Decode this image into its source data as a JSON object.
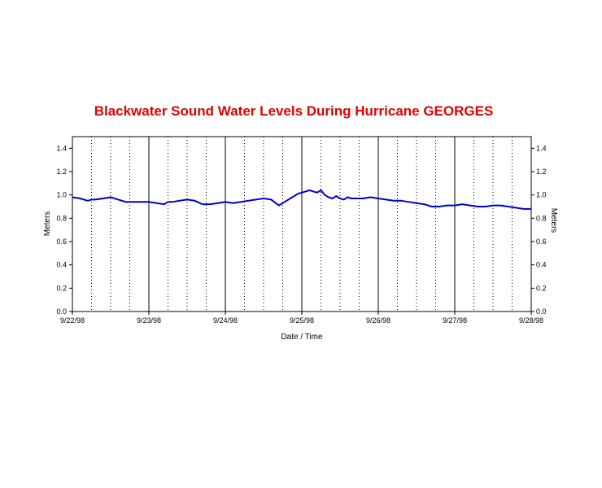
{
  "colors": {
    "title": "#e00000",
    "series": "#0000cc",
    "axis": "#000000",
    "grid": "#000000"
  },
  "chart_data": {
    "type": "line",
    "title": "Blackwater Sound Water Levels During Hurricane GEORGES",
    "xlabel": "Date / Time",
    "ylabel": "Meters",
    "ylabel_right": "Meters",
    "xlim": [
      "9/22/98 00:00",
      "9/28/98 00:00"
    ],
    "ylim": [
      0.0,
      1.5
    ],
    "x_tick_labels": [
      "9/22/98",
      "9/23/98",
      "9/24/98",
      "9/25/98",
      "9/26/98",
      "9/27/98",
      "9/28/98"
    ],
    "y_tick_labels": [
      "0.0",
      "0.2",
      "0.4",
      "0.6",
      "0.8",
      "1.0",
      "1.2",
      "1.4"
    ],
    "y_ticks": [
      0.0,
      0.2,
      0.4,
      0.6,
      0.8,
      1.0,
      1.2,
      1.4
    ],
    "grid": {
      "major_vertical": "solid, daily",
      "minor_vertical": "dotted, every 6 hours",
      "horizontal": "none"
    },
    "series": [
      {
        "x_days_from_9_22_98": [
          0.0,
          0.1,
          0.2,
          0.25,
          0.3,
          0.4,
          0.5,
          0.6,
          0.7,
          0.8,
          0.9,
          1.0,
          1.1,
          1.2,
          1.25,
          1.3,
          1.4,
          1.5,
          1.6,
          1.7,
          1.8,
          1.9,
          2.0,
          2.1,
          2.2,
          2.3,
          2.4,
          2.5,
          2.6,
          2.7,
          2.75,
          2.8,
          2.85,
          2.9,
          2.95,
          3.0,
          3.05,
          3.1,
          3.15,
          3.2,
          3.25,
          3.3,
          3.35,
          3.4,
          3.45,
          3.5,
          3.55,
          3.6,
          3.65,
          3.7,
          3.8,
          3.9,
          4.0,
          4.1,
          4.2,
          4.3,
          4.4,
          4.5,
          4.6,
          4.7,
          4.8,
          4.9,
          5.0,
          5.1,
          5.2,
          5.3,
          5.4,
          5.5,
          5.6,
          5.7,
          5.8,
          5.9,
          6.0
        ],
        "y": [
          0.98,
          0.97,
          0.95,
          0.96,
          0.96,
          0.97,
          0.98,
          0.96,
          0.94,
          0.94,
          0.94,
          0.94,
          0.93,
          0.92,
          0.94,
          0.94,
          0.95,
          0.96,
          0.95,
          0.92,
          0.92,
          0.93,
          0.94,
          0.93,
          0.94,
          0.95,
          0.96,
          0.97,
          0.96,
          0.91,
          0.93,
          0.95,
          0.97,
          0.99,
          1.01,
          1.02,
          1.03,
          1.04,
          1.03,
          1.02,
          1.04,
          1.0,
          0.98,
          0.97,
          0.99,
          0.97,
          0.96,
          0.98,
          0.97,
          0.97,
          0.97,
          0.98,
          0.97,
          0.96,
          0.95,
          0.95,
          0.94,
          0.93,
          0.92,
          0.9,
          0.9,
          0.91,
          0.91,
          0.92,
          0.91,
          0.9,
          0.9,
          0.91,
          0.91,
          0.9,
          0.89,
          0.88,
          0.88
        ]
      }
    ]
  }
}
